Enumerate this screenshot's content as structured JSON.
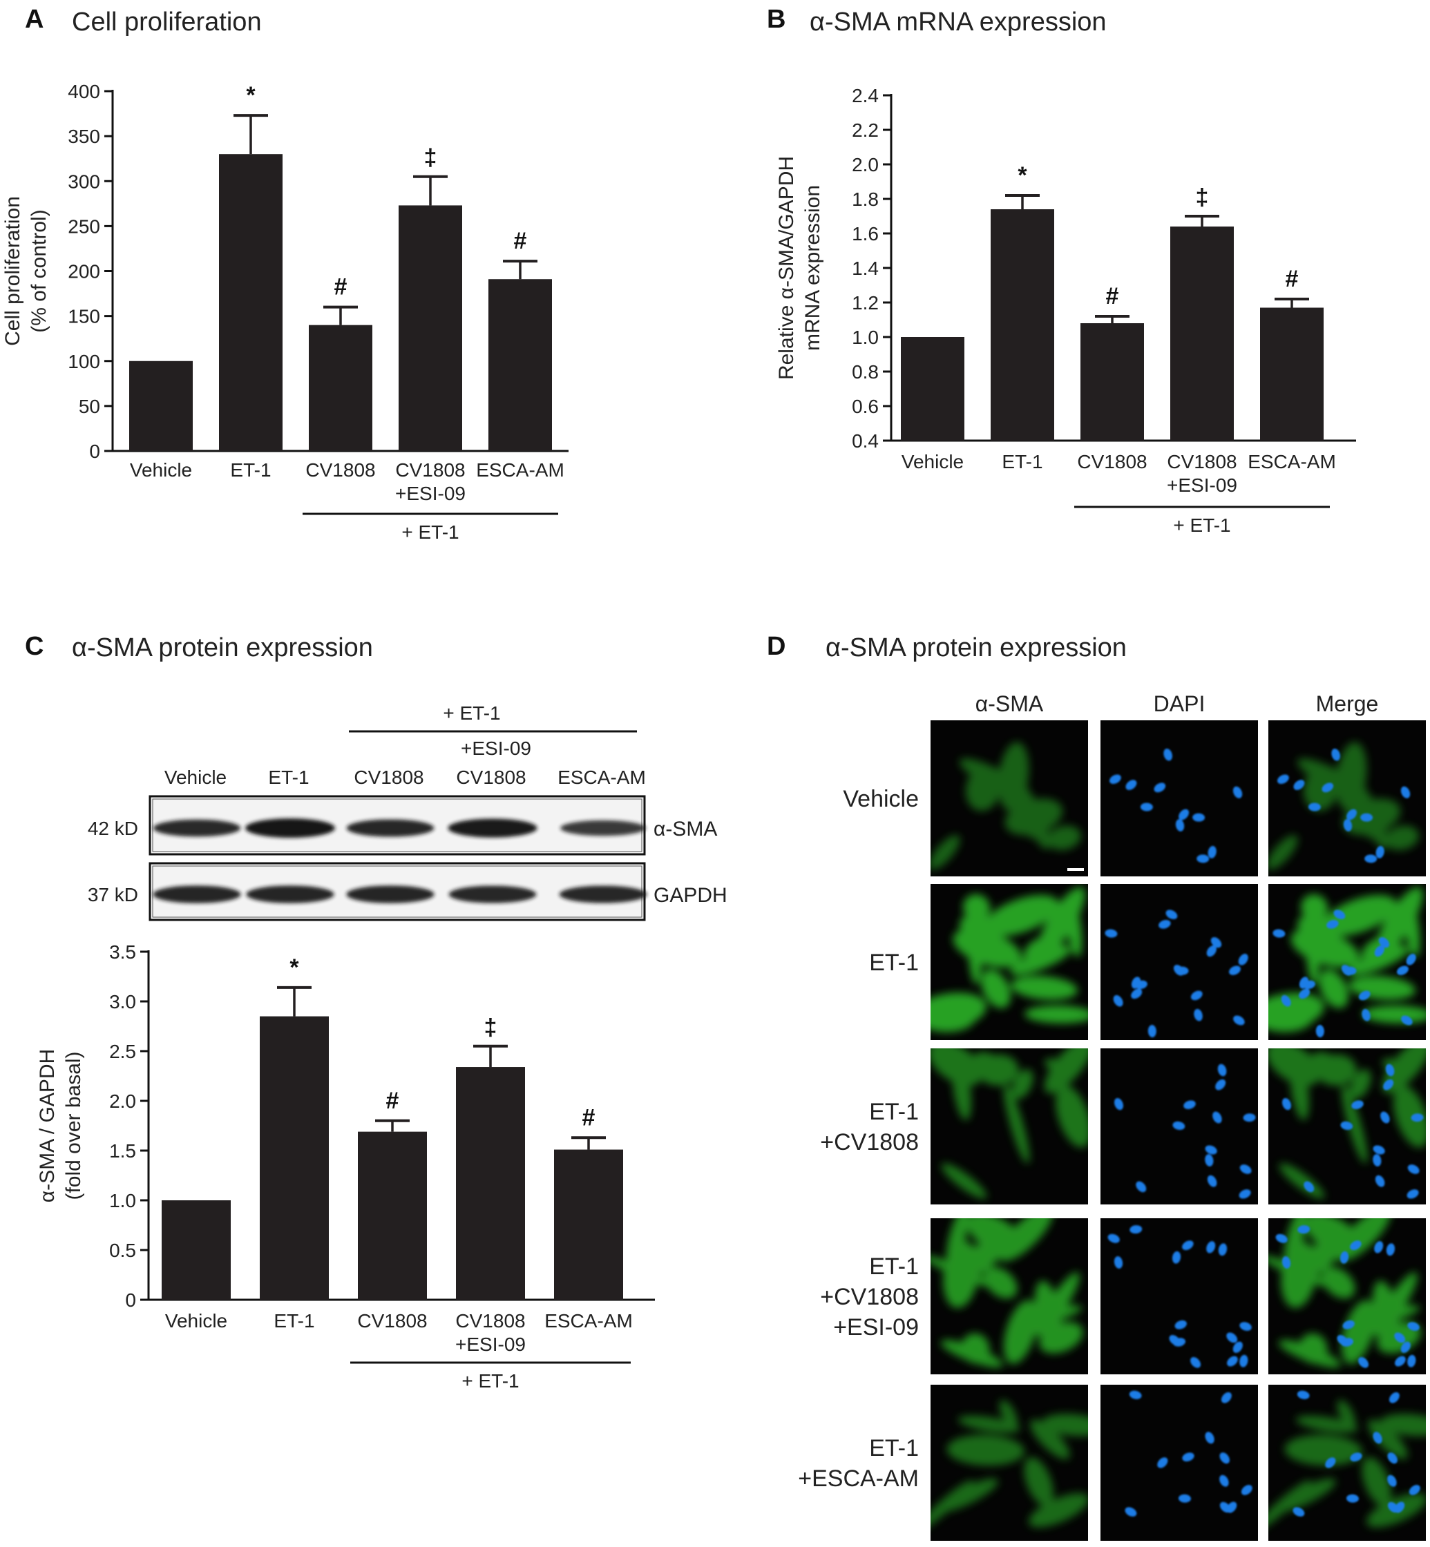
{
  "colors": {
    "bar": "#231f20",
    "axis": "#111111",
    "cell_bg": "#040404",
    "green": "#2fbf2a",
    "blue": "#1e7de6"
  },
  "chart_data": [
    {
      "panel": "A",
      "type": "bar",
      "title": "Cell proliferation",
      "ylabel": [
        "Cell proliferation",
        "(% of control)"
      ],
      "xlabel": "",
      "categories": [
        "Vehicle",
        "ET-1",
        "CV1808",
        "CV1808\n+ESI-09",
        "ESCA-AM"
      ],
      "values": [
        100,
        330,
        140,
        273,
        191
      ],
      "errors": [
        0,
        43,
        20,
        32,
        20
      ],
      "significance": [
        "",
        "*",
        "#",
        "‡",
        "#"
      ],
      "yticks": [
        "0",
        "50",
        "100",
        "150",
        "200",
        "250",
        "300",
        "350",
        "400"
      ],
      "ylim": [
        0,
        400
      ],
      "group_label": "+ ET-1",
      "group_range": [
        2,
        4
      ]
    },
    {
      "panel": "B",
      "type": "bar",
      "title": "α-SMA mRNA expression",
      "ylabel": [
        "Relative α-SMA/GAPDH",
        "mRNA expression"
      ],
      "xlabel": "",
      "categories": [
        "Vehicle",
        "ET-1",
        "CV1808",
        "CV1808\n+ESI-09",
        "ESCA-AM"
      ],
      "values": [
        1.0,
        1.74,
        1.08,
        1.64,
        1.17
      ],
      "errors": [
        0,
        0.08,
        0.04,
        0.06,
        0.05
      ],
      "significance": [
        "",
        "*",
        "#",
        "‡",
        "#"
      ],
      "yticks": [
        "0.4",
        "0.6",
        "0.8",
        "1.0",
        "1.2",
        "1.4",
        "1.6",
        "1.8",
        "2.0",
        "2.2",
        "2.4"
      ],
      "ylim": [
        0.4,
        2.4
      ],
      "group_label": "+ ET-1",
      "group_range": [
        2,
        4
      ]
    },
    {
      "panel": "C",
      "type": "bar",
      "title": "α-SMA protein expression",
      "ylabel": [
        "α-SMA / GAPDH",
        "(fold over basal)"
      ],
      "xlabel": "",
      "categories": [
        "Vehicle",
        "ET-1",
        "CV1808",
        "CV1808\n+ESI-09",
        "ESCA-AM"
      ],
      "values": [
        1.0,
        2.85,
        1.69,
        2.34,
        1.51
      ],
      "errors": [
        0,
        0.29,
        0.11,
        0.21,
        0.12
      ],
      "significance": [
        "",
        "*",
        "#",
        "‡",
        "#"
      ],
      "yticks": [
        "0",
        "0.5",
        "1.0",
        "1.5",
        "2.0",
        "2.5",
        "3.0",
        "3.5"
      ],
      "ylim": [
        0,
        3.5
      ],
      "group_label": "+ ET-1",
      "group_range": [
        2,
        4
      ]
    }
  ],
  "western_blot": {
    "group_label": "+ ET-1",
    "esi_label": "+ESI-09",
    "lanes": [
      "Vehicle",
      "ET-1",
      "CV1808",
      "CV1808",
      "ESCA-AM"
    ],
    "rows": [
      {
        "kd": "42 kD",
        "protein": "α-SMA",
        "intensity": [
          0.8,
          1.0,
          0.82,
          0.95,
          0.65
        ]
      },
      {
        "kd": "37 kD",
        "protein": "GAPDH",
        "intensity": [
          0.85,
          0.85,
          0.85,
          0.82,
          0.82
        ]
      }
    ]
  },
  "microscopy": {
    "panel": "D",
    "title": "α-SMA protein expression",
    "columns": [
      "α-SMA",
      "DAPI",
      "Merge"
    ],
    "rows": [
      {
        "label": [
          "Vehicle"
        ],
        "green": 0.25
      },
      {
        "label": [
          "ET-1"
        ],
        "green": 0.9
      },
      {
        "label": [
          "ET-1",
          "+CV1808"
        ],
        "green": 0.45
      },
      {
        "label": [
          "ET-1",
          "+CV1808",
          "+ESI-09"
        ],
        "green": 0.75
      },
      {
        "label": [
          "ET-1",
          "+ESCA-AM"
        ],
        "green": 0.35
      }
    ]
  }
}
